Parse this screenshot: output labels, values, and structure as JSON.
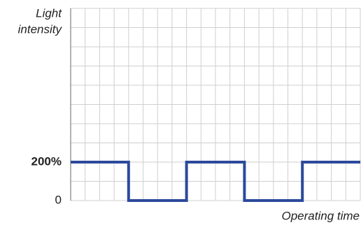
{
  "chart_data": {
    "type": "line",
    "ylabel": [
      "Light",
      "intensity"
    ],
    "xlabel": "Operating time",
    "x": [
      0,
      4,
      4,
      8,
      8,
      12,
      12,
      16,
      16,
      20
    ],
    "series": [
      {
        "color": "#2c4a9b",
        "values": [
          200,
          200,
          0,
          0,
          200,
          200,
          0,
          0,
          200,
          200
        ]
      }
    ],
    "xlim": [
      0,
      20
    ],
    "ylim": [
      0,
      1000
    ],
    "yticks": [
      0,
      {
        "value": 200,
        "label": "200%"
      }
    ],
    "xgrid": [
      0,
      1,
      2,
      3,
      4,
      5,
      6,
      7,
      8,
      9,
      10,
      11,
      12,
      13,
      14,
      15,
      16,
      17,
      18,
      19,
      20
    ],
    "ygrid": [
      0,
      100,
      200,
      300,
      400,
      500,
      600,
      700,
      800,
      900,
      1000
    ],
    "grid": true
  }
}
